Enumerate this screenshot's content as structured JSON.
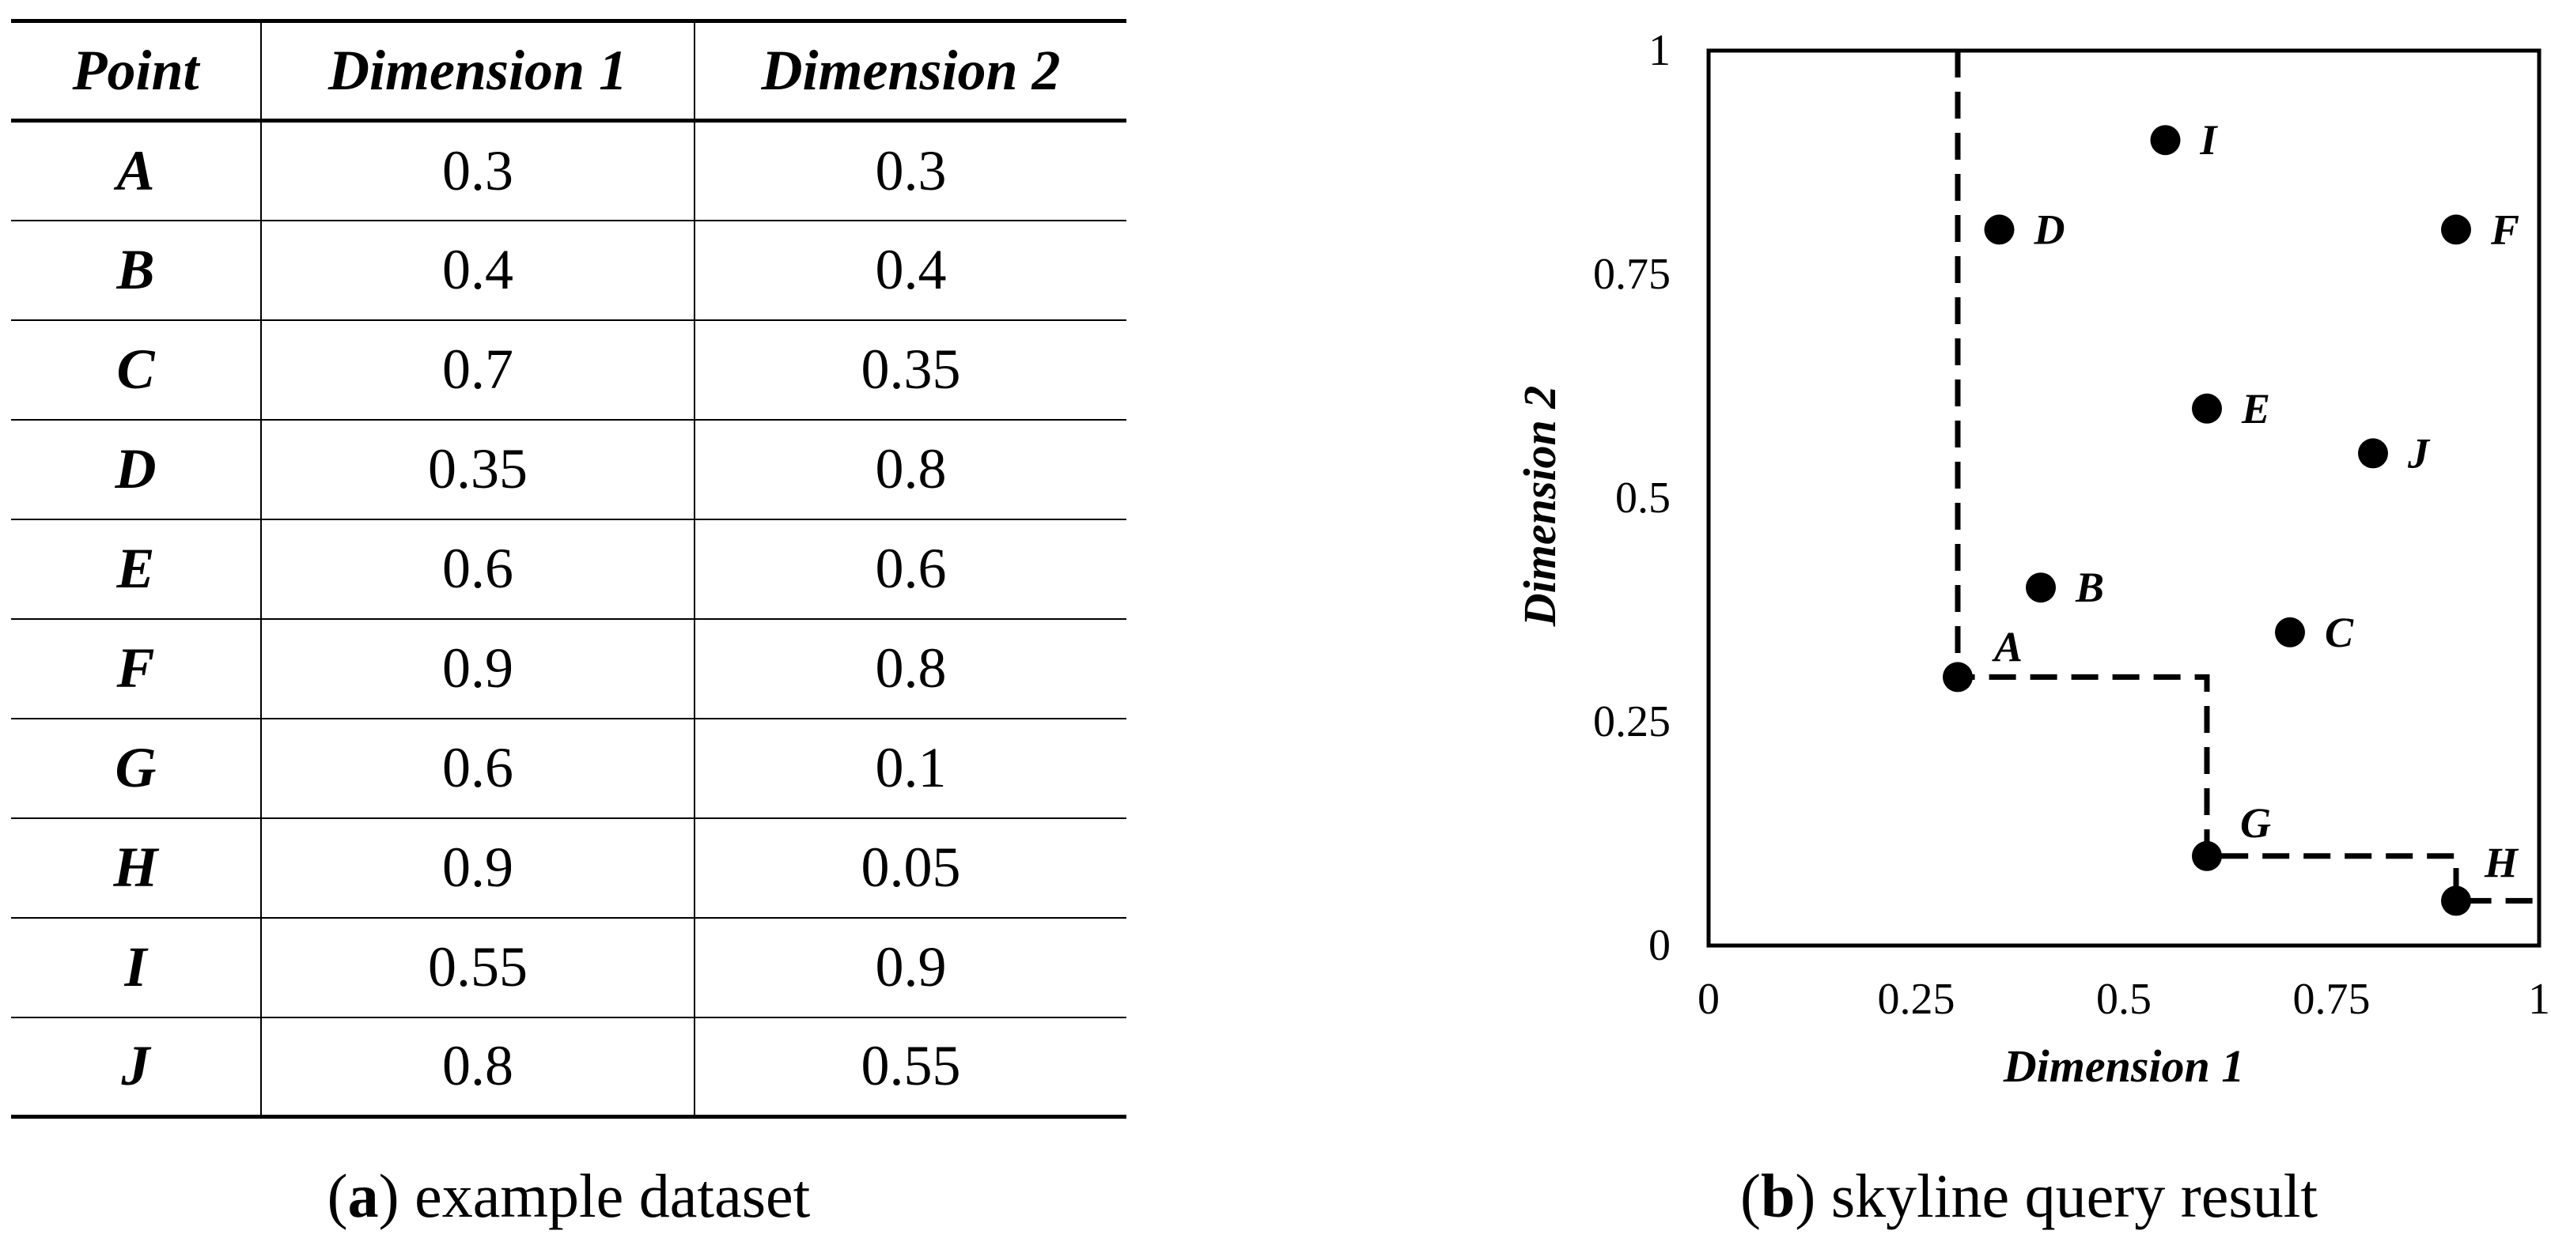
{
  "table": {
    "headers": [
      "Point",
      "Dimension 1",
      "Dimension 2"
    ],
    "rows": [
      [
        "A",
        "0.3",
        "0.3"
      ],
      [
        "B",
        "0.4",
        "0.4"
      ],
      [
        "C",
        "0.7",
        "0.35"
      ],
      [
        "D",
        "0.35",
        "0.8"
      ],
      [
        "E",
        "0.6",
        "0.6"
      ],
      [
        "F",
        "0.9",
        "0.8"
      ],
      [
        "G",
        "0.6",
        "0.1"
      ],
      [
        "H",
        "0.9",
        "0.05"
      ],
      [
        "I",
        "0.55",
        "0.9"
      ],
      [
        "J",
        "0.8",
        "0.55"
      ]
    ]
  },
  "captions": {
    "a": {
      "label": "a",
      "text": " example dataset"
    },
    "b": {
      "label": "b",
      "text": " skyline query result"
    }
  },
  "chart_data": {
    "type": "scatter",
    "title": "",
    "xlabel": "Dimension 1",
    "ylabel": "Dimension 2",
    "xlim": [
      0,
      1
    ],
    "ylim": [
      0,
      1
    ],
    "xticks": [
      0,
      0.25,
      0.5,
      0.75,
      1
    ],
    "yticks": [
      0,
      0.25,
      0.5,
      0.75,
      1
    ],
    "xtick_labels": [
      "0",
      "0.25",
      "0.5",
      "0.75",
      "1"
    ],
    "ytick_labels": [
      "0",
      "0.25",
      "0.5",
      "0.75",
      "1"
    ],
    "grid": false,
    "points": [
      {
        "label": "A",
        "x": 0.3,
        "y": 0.3
      },
      {
        "label": "B",
        "x": 0.4,
        "y": 0.4
      },
      {
        "label": "C",
        "x": 0.7,
        "y": 0.35
      },
      {
        "label": "D",
        "x": 0.35,
        "y": 0.8
      },
      {
        "label": "E",
        "x": 0.6,
        "y": 0.6
      },
      {
        "label": "F",
        "x": 0.9,
        "y": 0.8
      },
      {
        "label": "G",
        "x": 0.6,
        "y": 0.1
      },
      {
        "label": "H",
        "x": 0.9,
        "y": 0.05
      },
      {
        "label": "I",
        "x": 0.55,
        "y": 0.9
      },
      {
        "label": "J",
        "x": 0.8,
        "y": 0.55
      }
    ],
    "skyline_boundary": [
      [
        0.3,
        1.0
      ],
      [
        0.3,
        0.3
      ],
      [
        0.6,
        0.3
      ],
      [
        0.6,
        0.1
      ],
      [
        0.9,
        0.1
      ],
      [
        0.9,
        0.05
      ],
      [
        1.0,
        0.05
      ]
    ]
  }
}
